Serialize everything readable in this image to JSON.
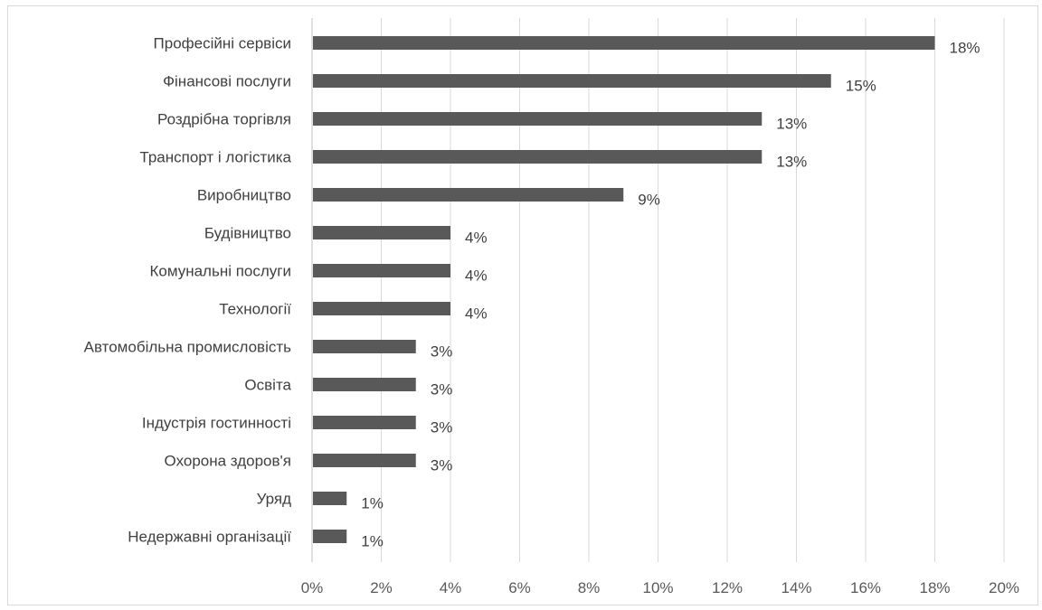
{
  "chart_data": {
    "type": "bar",
    "orientation": "horizontal",
    "title": "",
    "xlabel": "",
    "ylabel": "",
    "categories": [
      "Професійні сервіси",
      "Фінансові послуги",
      "Роздрібна торгівля",
      "Транспорт і логістика",
      "Виробництво",
      "Будівництво",
      "Комунальні послуги",
      "Технології",
      "Автомобільна промисловість",
      "Освіта",
      "Індустрія гостинності",
      "Охорона здоров'я",
      "Уряд",
      "Недержавні організації"
    ],
    "values": [
      18,
      15,
      13,
      13,
      9,
      4,
      4,
      4,
      3,
      3,
      3,
      3,
      1,
      1
    ],
    "value_labels": [
      "18%",
      "15%",
      "13%",
      "13%",
      "9%",
      "4%",
      "4%",
      "4%",
      "3%",
      "3%",
      "3%",
      "3%",
      "1%",
      "1%"
    ],
    "xlim": [
      0,
      20
    ],
    "x_ticks": [
      0,
      2,
      4,
      6,
      8,
      10,
      12,
      14,
      16,
      18,
      20
    ],
    "x_tick_labels": [
      "0%",
      "2%",
      "4%",
      "6%",
      "8%",
      "10%",
      "12%",
      "14%",
      "16%",
      "18%",
      "20%"
    ],
    "grid": "vertical",
    "legend": "none",
    "colors": {
      "bar": "#595959",
      "grid": "#d9d9d9",
      "axis": "#bfbfbf",
      "text": "#404040"
    }
  }
}
